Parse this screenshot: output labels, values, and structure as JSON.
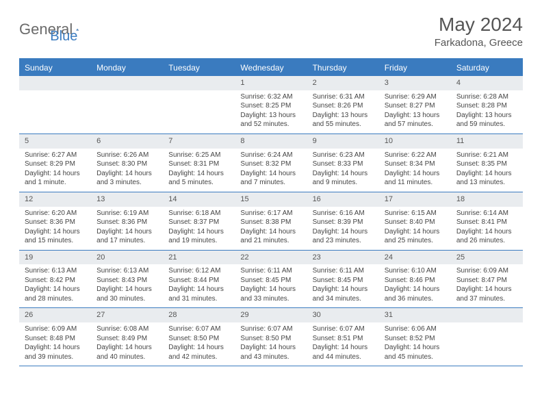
{
  "logo": {
    "text1": "General",
    "text2": "Blue"
  },
  "title": "May 2024",
  "location": "Farkadona, Greece",
  "colors": {
    "accent": "#3a7bbf",
    "header_bg": "#3a7bbf",
    "daynum_bg": "#e9ecef",
    "text": "#555555"
  },
  "day_names": [
    "Sunday",
    "Monday",
    "Tuesday",
    "Wednesday",
    "Thursday",
    "Friday",
    "Saturday"
  ],
  "weeks": [
    [
      null,
      null,
      null,
      {
        "n": "1",
        "sr": "6:32 AM",
        "ss": "8:25 PM",
        "dl": "13 hours and 52 minutes."
      },
      {
        "n": "2",
        "sr": "6:31 AM",
        "ss": "8:26 PM",
        "dl": "13 hours and 55 minutes."
      },
      {
        "n": "3",
        "sr": "6:29 AM",
        "ss": "8:27 PM",
        "dl": "13 hours and 57 minutes."
      },
      {
        "n": "4",
        "sr": "6:28 AM",
        "ss": "8:28 PM",
        "dl": "13 hours and 59 minutes."
      }
    ],
    [
      {
        "n": "5",
        "sr": "6:27 AM",
        "ss": "8:29 PM",
        "dl": "14 hours and 1 minute."
      },
      {
        "n": "6",
        "sr": "6:26 AM",
        "ss": "8:30 PM",
        "dl": "14 hours and 3 minutes."
      },
      {
        "n": "7",
        "sr": "6:25 AM",
        "ss": "8:31 PM",
        "dl": "14 hours and 5 minutes."
      },
      {
        "n": "8",
        "sr": "6:24 AM",
        "ss": "8:32 PM",
        "dl": "14 hours and 7 minutes."
      },
      {
        "n": "9",
        "sr": "6:23 AM",
        "ss": "8:33 PM",
        "dl": "14 hours and 9 minutes."
      },
      {
        "n": "10",
        "sr": "6:22 AM",
        "ss": "8:34 PM",
        "dl": "14 hours and 11 minutes."
      },
      {
        "n": "11",
        "sr": "6:21 AM",
        "ss": "8:35 PM",
        "dl": "14 hours and 13 minutes."
      }
    ],
    [
      {
        "n": "12",
        "sr": "6:20 AM",
        "ss": "8:36 PM",
        "dl": "14 hours and 15 minutes."
      },
      {
        "n": "13",
        "sr": "6:19 AM",
        "ss": "8:36 PM",
        "dl": "14 hours and 17 minutes."
      },
      {
        "n": "14",
        "sr": "6:18 AM",
        "ss": "8:37 PM",
        "dl": "14 hours and 19 minutes."
      },
      {
        "n": "15",
        "sr": "6:17 AM",
        "ss": "8:38 PM",
        "dl": "14 hours and 21 minutes."
      },
      {
        "n": "16",
        "sr": "6:16 AM",
        "ss": "8:39 PM",
        "dl": "14 hours and 23 minutes."
      },
      {
        "n": "17",
        "sr": "6:15 AM",
        "ss": "8:40 PM",
        "dl": "14 hours and 25 minutes."
      },
      {
        "n": "18",
        "sr": "6:14 AM",
        "ss": "8:41 PM",
        "dl": "14 hours and 26 minutes."
      }
    ],
    [
      {
        "n": "19",
        "sr": "6:13 AM",
        "ss": "8:42 PM",
        "dl": "14 hours and 28 minutes."
      },
      {
        "n": "20",
        "sr": "6:13 AM",
        "ss": "8:43 PM",
        "dl": "14 hours and 30 minutes."
      },
      {
        "n": "21",
        "sr": "6:12 AM",
        "ss": "8:44 PM",
        "dl": "14 hours and 31 minutes."
      },
      {
        "n": "22",
        "sr": "6:11 AM",
        "ss": "8:45 PM",
        "dl": "14 hours and 33 minutes."
      },
      {
        "n": "23",
        "sr": "6:11 AM",
        "ss": "8:45 PM",
        "dl": "14 hours and 34 minutes."
      },
      {
        "n": "24",
        "sr": "6:10 AM",
        "ss": "8:46 PM",
        "dl": "14 hours and 36 minutes."
      },
      {
        "n": "25",
        "sr": "6:09 AM",
        "ss": "8:47 PM",
        "dl": "14 hours and 37 minutes."
      }
    ],
    [
      {
        "n": "26",
        "sr": "6:09 AM",
        "ss": "8:48 PM",
        "dl": "14 hours and 39 minutes."
      },
      {
        "n": "27",
        "sr": "6:08 AM",
        "ss": "8:49 PM",
        "dl": "14 hours and 40 minutes."
      },
      {
        "n": "28",
        "sr": "6:07 AM",
        "ss": "8:50 PM",
        "dl": "14 hours and 42 minutes."
      },
      {
        "n": "29",
        "sr": "6:07 AM",
        "ss": "8:50 PM",
        "dl": "14 hours and 43 minutes."
      },
      {
        "n": "30",
        "sr": "6:07 AM",
        "ss": "8:51 PM",
        "dl": "14 hours and 44 minutes."
      },
      {
        "n": "31",
        "sr": "6:06 AM",
        "ss": "8:52 PM",
        "dl": "14 hours and 45 minutes."
      },
      null
    ]
  ],
  "labels": {
    "sunrise": "Sunrise: ",
    "sunset": "Sunset: ",
    "daylight": "Daylight: "
  }
}
